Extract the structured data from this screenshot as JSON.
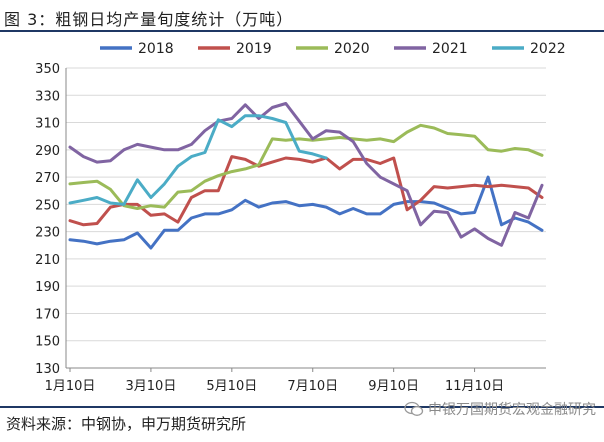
{
  "header": {
    "title": "图 3：粗钢日均产量旬度统计（万吨）"
  },
  "footer": {
    "source": "资料来源：中钢协，申万期货研究所",
    "watermark": "申银万国期货宏观金融研究"
  },
  "chart_data": {
    "type": "line",
    "title": "粗钢日均产量旬度统计（万吨）",
    "xlabel": "",
    "ylabel": "",
    "ylim": [
      130,
      350
    ],
    "y_ticks": [
      130,
      150,
      170,
      190,
      210,
      230,
      250,
      270,
      290,
      310,
      330,
      350
    ],
    "x_ticks": [
      {
        "label": "1月10日",
        "index": 0
      },
      {
        "label": "3月10日",
        "index": 6
      },
      {
        "label": "5月10日",
        "index": 12
      },
      {
        "label": "7月10日",
        "index": 18
      },
      {
        "label": "9月10日",
        "index": 24
      },
      {
        "label": "11月10日",
        "index": 30
      }
    ],
    "x_count": 36,
    "legend_position": "top",
    "series": [
      {
        "name": "2018",
        "color": "#4472c4",
        "values": [
          224,
          223,
          221,
          223,
          224,
          229,
          218,
          231,
          231,
          240,
          243,
          243,
          246,
          253,
          248,
          251,
          252,
          249,
          250,
          248,
          243,
          247,
          243,
          243,
          250,
          252,
          252,
          251,
          247,
          243,
          244,
          270,
          235,
          240,
          237,
          231
        ]
      },
      {
        "name": "2019",
        "color": "#c0504d",
        "values": [
          238,
          235,
          236,
          248,
          250,
          250,
          242,
          243,
          237,
          255,
          260,
          260,
          285,
          283,
          278,
          281,
          284,
          283,
          281,
          284,
          276,
          283,
          283,
          280,
          284,
          246,
          253,
          263,
          262,
          263,
          264,
          263,
          264,
          263,
          262,
          255
        ]
      },
      {
        "name": "2020",
        "color": "#9bbb59",
        "values": [
          265,
          266,
          267,
          261,
          249,
          247,
          249,
          248,
          259,
          260,
          267,
          271,
          274,
          276,
          279,
          298,
          297,
          298,
          297,
          298,
          299,
          298,
          297,
          298,
          296,
          303,
          308,
          306,
          302,
          301,
          300,
          290,
          289,
          291,
          290,
          286
        ]
      },
      {
        "name": "2021",
        "color": "#8064a2",
        "values": [
          292,
          285,
          281,
          282,
          290,
          294,
          292,
          290,
          290,
          294,
          304,
          311,
          313,
          323,
          313,
          321,
          324,
          311,
          298,
          304,
          303,
          296,
          280,
          270,
          265,
          260,
          235,
          245,
          244,
          226,
          232,
          225,
          220,
          244,
          240,
          264
        ]
      },
      {
        "name": "2022",
        "color": "#4bacc6",
        "values": [
          251,
          253,
          255,
          251,
          250,
          268,
          255,
          265,
          278,
          285,
          288,
          312,
          307,
          315,
          315,
          313,
          310,
          289,
          287,
          284
        ]
      }
    ]
  }
}
